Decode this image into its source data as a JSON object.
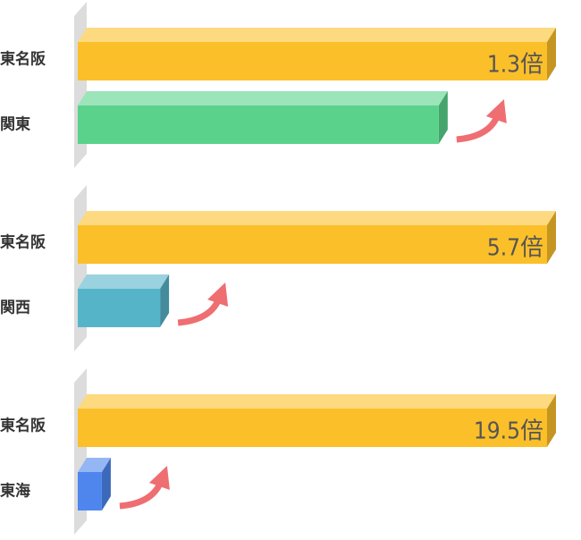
{
  "chart_data": [
    {
      "type": "bar",
      "categories": [
        "東名阪",
        "関東"
      ],
      "values": [
        1.3,
        1
      ],
      "value_labels": [
        "1.3倍",
        null
      ],
      "colors": [
        "#fbbf2a",
        "#5ad28c"
      ]
    },
    {
      "type": "bar",
      "categories": [
        "東名阪",
        "関西"
      ],
      "values": [
        5.7,
        1
      ],
      "value_labels": [
        "5.7倍",
        null
      ],
      "colors": [
        "#fbbf2a",
        "#56b4c9"
      ]
    },
    {
      "type": "bar",
      "categories": [
        "東名阪",
        "東海"
      ],
      "values": [
        19.5,
        1
      ],
      "value_labels": [
        "19.5倍",
        null
      ],
      "colors": [
        "#fbbf2a",
        "#4e86ee"
      ]
    }
  ]
}
